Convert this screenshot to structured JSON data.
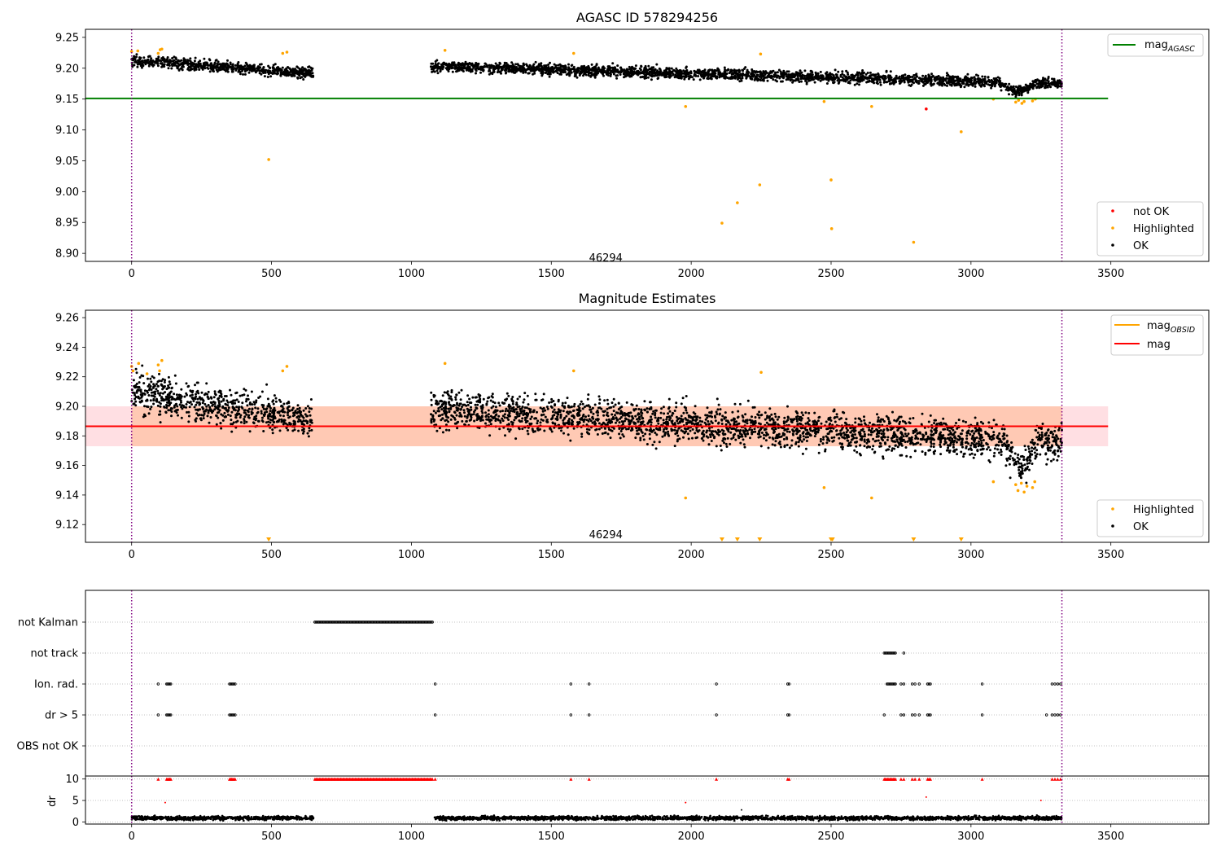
{
  "chart_data": [
    {
      "type": "scatter",
      "title": "AGASC ID 578294256",
      "xlim": [
        -165,
        3850
      ],
      "ylim": [
        8.887,
        9.263
      ],
      "xticks": [
        0,
        500,
        1000,
        1500,
        2000,
        2500,
        3000,
        3500
      ],
      "yticks": [
        8.9,
        8.95,
        9.0,
        9.05,
        9.1,
        9.15,
        9.2,
        9.25
      ],
      "xtick_labels": [
        "0",
        "500",
        "1000",
        "1500",
        "2000",
        "2500",
        "3000",
        "3500"
      ],
      "ytick_labels": [
        "8.90",
        "8.95",
        "9.00",
        "9.05",
        "9.10",
        "9.15",
        "9.20",
        "9.25"
      ],
      "obsid_label": {
        "text": "46294",
        "x": 1660,
        "y": 8.892
      },
      "vlines": [
        0,
        3325
      ],
      "hline": {
        "name": "mag_AGASC",
        "y": 9.151,
        "x_range": [
          -165,
          3490
        ],
        "color": "#008000"
      },
      "legend_top": {
        "label": "mag",
        "sub": "AGASC",
        "color": "#008000",
        "position": "top-right"
      },
      "legend_bottom": {
        "position": "lower-right",
        "entries": [
          {
            "label": "not OK",
            "color": "#ff0000"
          },
          {
            "label": "Highlighted",
            "color": "#ffa500"
          },
          {
            "label": "OK",
            "color": "#000000"
          }
        ]
      },
      "ok_segments": [
        {
          "x0": 0,
          "x1": 650,
          "y0": 9.212,
          "y1": 9.192,
          "spread": 0.009
        },
        {
          "x0": 1070,
          "x1": 3325,
          "y0": 9.203,
          "y1": 9.175,
          "spread": 0.009
        }
      ],
      "ok_dip": {
        "x0": 3100,
        "x1": 3230,
        "depth": 0.014
      },
      "highlighted_points": [
        {
          "x": 0,
          "y": 9.227
        },
        {
          "x": 22,
          "y": 9.228
        },
        {
          "x": 95,
          "y": 9.224
        },
        {
          "x": 102,
          "y": 9.23
        },
        {
          "x": 108,
          "y": 9.231
        },
        {
          "x": 490,
          "y": 9.052
        },
        {
          "x": 540,
          "y": 9.224
        },
        {
          "x": 555,
          "y": 9.226
        },
        {
          "x": 1120,
          "y": 9.229
        },
        {
          "x": 1580,
          "y": 9.224
        },
        {
          "x": 1980,
          "y": 9.138
        },
        {
          "x": 2110,
          "y": 8.949
        },
        {
          "x": 2165,
          "y": 8.982
        },
        {
          "x": 2245,
          "y": 9.011
        },
        {
          "x": 2248,
          "y": 9.223
        },
        {
          "x": 2475,
          "y": 9.146
        },
        {
          "x": 2500,
          "y": 9.019
        },
        {
          "x": 2502,
          "y": 8.94
        },
        {
          "x": 2645,
          "y": 9.138
        },
        {
          "x": 2795,
          "y": 8.918
        },
        {
          "x": 2965,
          "y": 9.097
        },
        {
          "x": 3080,
          "y": 9.15
        },
        {
          "x": 3160,
          "y": 9.145
        },
        {
          "x": 3170,
          "y": 9.148
        },
        {
          "x": 3182,
          "y": 9.143
        },
        {
          "x": 3190,
          "y": 9.146
        },
        {
          "x": 3220,
          "y": 9.147
        },
        {
          "x": 3230,
          "y": 9.15
        }
      ],
      "notok_points": [
        {
          "x": 2840,
          "y": 9.134
        }
      ]
    },
    {
      "type": "scatter",
      "title": "Magnitude Estimates",
      "xlim": [
        -165,
        3850
      ],
      "ylim": [
        9.108,
        9.265
      ],
      "xticks": [
        0,
        500,
        1000,
        1500,
        2000,
        2500,
        3000,
        3500
      ],
      "yticks": [
        9.12,
        9.14,
        9.16,
        9.18,
        9.2,
        9.22,
        9.24,
        9.26
      ],
      "xtick_labels": [
        "0",
        "500",
        "1000",
        "1500",
        "2000",
        "2500",
        "3000",
        "3500"
      ],
      "ytick_labels": [
        "9.12",
        "9.14",
        "9.16",
        "9.18",
        "9.20",
        "9.22",
        "9.24",
        "9.26"
      ],
      "obsid_label": {
        "text": "46294",
        "x": 1660,
        "y": 9.113
      },
      "vlines": [
        0,
        3325
      ],
      "mag_line": {
        "name": "mag",
        "y": 9.1865,
        "x_range": [
          -165,
          3490
        ],
        "color": "#ff0000"
      },
      "mag_band": {
        "y0": 9.173,
        "y1": 9.2,
        "x_range": [
          -165,
          3490
        ]
      },
      "obsid_band": {
        "y0": 9.173,
        "y1": 9.2,
        "x_range": [
          0,
          3325
        ]
      },
      "legend_top": {
        "position": "top-right",
        "entries": [
          {
            "label": "mag",
            "sub": "OBSID",
            "color": "#ffa500"
          },
          {
            "label": "mag",
            "sub": "",
            "color": "#ff0000"
          }
        ]
      },
      "legend_bottom": {
        "position": "lower-right",
        "entries": [
          {
            "label": "Highlighted",
            "color": "#ffa500"
          },
          {
            "label": "OK",
            "color": "#000000"
          }
        ]
      },
      "ok_segments": [
        {
          "x0": 0,
          "x1": 650,
          "y0": 9.21,
          "y1": 9.19,
          "spread": 0.013
        },
        {
          "x0": 1070,
          "x1": 3325,
          "y0": 9.198,
          "y1": 9.175,
          "spread": 0.013
        }
      ],
      "ok_dip": {
        "x0": 3120,
        "x1": 3230,
        "depth": 0.018
      },
      "highlighted_points": [
        {
          "x": 0,
          "y": 9.227
        },
        {
          "x": 5,
          "y": 9.224
        },
        {
          "x": 25,
          "y": 9.229
        },
        {
          "x": 55,
          "y": 9.222
        },
        {
          "x": 95,
          "y": 9.228
        },
        {
          "x": 100,
          "y": 9.224
        },
        {
          "x": 108,
          "y": 9.231
        },
        {
          "x": 540,
          "y": 9.224
        },
        {
          "x": 555,
          "y": 9.227
        },
        {
          "x": 1120,
          "y": 9.229
        },
        {
          "x": 1580,
          "y": 9.224
        },
        {
          "x": 1980,
          "y": 9.138
        },
        {
          "x": 2250,
          "y": 9.223
        },
        {
          "x": 2475,
          "y": 9.145
        },
        {
          "x": 2645,
          "y": 9.138
        },
        {
          "x": 3080,
          "y": 9.149
        },
        {
          "x": 3160,
          "y": 9.147
        },
        {
          "x": 3168,
          "y": 9.143
        },
        {
          "x": 3180,
          "y": 9.148
        },
        {
          "x": 3190,
          "y": 9.142
        },
        {
          "x": 3200,
          "y": 9.146
        },
        {
          "x": 3220,
          "y": 9.145
        },
        {
          "x": 3228,
          "y": 9.149
        }
      ],
      "offscale_markers": [
        490,
        2110,
        2165,
        2245,
        2500,
        2505,
        2795,
        2965
      ]
    },
    {
      "type": "scatter",
      "title": "",
      "xlim": [
        -165,
        3850
      ],
      "categories": [
        "not Kalman",
        "not track",
        "Ion. rad.",
        "dr > 5",
        "OBS not OK"
      ],
      "flags": {
        "not Kalman": {
          "ranges": [
            [
              655,
              1075
            ]
          ],
          "points": []
        },
        "not track": {
          "ranges": [
            [
              2690,
              2730
            ]
          ],
          "points": [
            2760
          ]
        },
        "Ion. rad.": {
          "ranges": [
            [
              125,
              140
            ],
            [
              350,
              365
            ],
            [
              2700,
              2730
            ]
          ],
          "points": [
            95,
            370,
            1085,
            1570,
            1635,
            2090,
            2345,
            2350,
            2750,
            2760,
            2790,
            2800,
            2815,
            2845,
            2850,
            2855,
            3040,
            3290,
            3300,
            3310,
            3320
          ]
        },
        "dr > 5": {
          "ranges": [
            [
              125,
              140
            ],
            [
              350,
              365
            ]
          ],
          "points": [
            95,
            370,
            1085,
            1570,
            1635,
            2090,
            2345,
            2350,
            2690,
            2750,
            2760,
            2790,
            2800,
            2815,
            2845,
            2850,
            2855,
            3040,
            3270,
            3290,
            3300,
            3310,
            3320
          ]
        },
        "OBS not OK": {
          "ranges": [],
          "points": []
        }
      },
      "vlines": [
        0,
        3325
      ]
    },
    {
      "type": "scatter",
      "title": "",
      "ylabel": "dr",
      "xlim": [
        -165,
        3850
      ],
      "ylim": [
        -0.5,
        10.7
      ],
      "yticks": [
        0,
        5,
        10
      ],
      "ytick_labels": [
        "0",
        "5",
        "10"
      ],
      "xticks": [
        0,
        500,
        1000,
        1500,
        2000,
        2500,
        3000,
        3500
      ],
      "xtick_labels": [
        "0",
        "500",
        "1000",
        "1500",
        "2000",
        "2500",
        "3000",
        "3500"
      ],
      "dr_segments": [
        {
          "x0": 0,
          "x1": 650,
          "y": 0.9
        },
        {
          "x0": 1080,
          "x1": 3325,
          "y": 0.9
        }
      ],
      "dr_capped_ranges": [
        [
          125,
          140
        ],
        [
          350,
          365
        ],
        [
          655,
          1075
        ],
        [
          2690,
          2730
        ]
      ],
      "dr_capped_points": [
        95,
        370,
        1085,
        1570,
        1635,
        2090,
        2345,
        2350,
        2750,
        2760,
        2790,
        2800,
        2815,
        2845,
        2850,
        2855,
        3040,
        3290,
        3300,
        3310,
        3320
      ],
      "dr_other_points": [
        {
          "x": 120,
          "y": 4.5
        },
        {
          "x": 1980,
          "y": 4.5
        },
        {
          "x": 2840,
          "y": 5.8
        },
        {
          "x": 3250,
          "y": 5.0
        },
        {
          "x": 2180,
          "y": 2.8
        }
      ],
      "vlines": [
        0,
        3325
      ]
    }
  ]
}
